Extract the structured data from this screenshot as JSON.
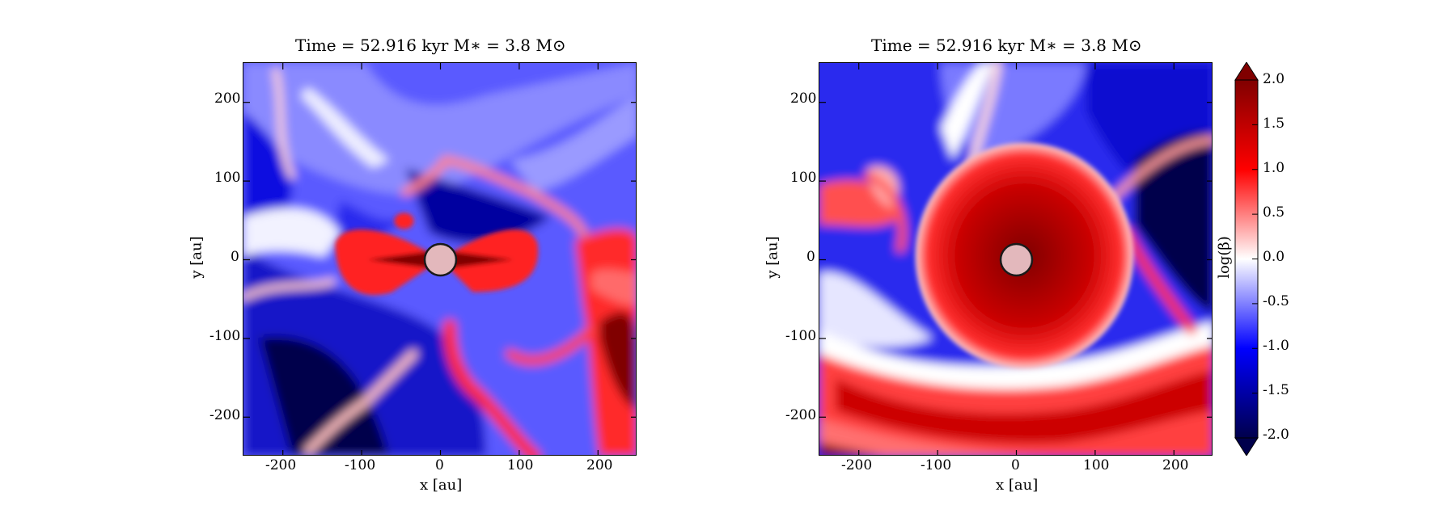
{
  "chart_data": [
    {
      "type": "heatmap",
      "title": "Time = 52.916 kyr    M∗ = 3.8 M⊙",
      "xlabel": "x [au]",
      "ylabel": "y [au]",
      "xlim": [
        -250,
        250
      ],
      "ylim": [
        -250,
        250
      ],
      "x_ticks": [
        -200,
        -100,
        0,
        100,
        200
      ],
      "x_tick_labels": [
        "-200",
        "-100",
        "0",
        "100",
        "200"
      ],
      "y_ticks": [
        200,
        100,
        0,
        -100,
        -200
      ],
      "y_tick_labels": [
        "200",
        "100",
        "0",
        "-100",
        "-200"
      ],
      "colormap": "seismic",
      "sink": {
        "x": 0,
        "y": 0,
        "radius": 20
      },
      "structures": [
        {
          "shape": "bipolar-lobes",
          "description_value": "log(beta) high along equatorial plane"
        },
        {
          "shape": "spiral-arms",
          "description_value": "streamers"
        }
      ]
    },
    {
      "type": "heatmap",
      "title": "Time = 52.916 kyr    M∗ = 3.8 M⊙",
      "xlabel": "x [au]",
      "ylabel": "y [au]",
      "xlim": [
        -250,
        250
      ],
      "ylim": [
        -250,
        250
      ],
      "x_ticks": [
        -200,
        -100,
        0,
        100,
        200
      ],
      "x_tick_labels": [
        "-200",
        "-100",
        "0",
        "100",
        "200"
      ],
      "y_ticks": [
        200,
        100,
        0,
        -100,
        -200
      ],
      "y_tick_labels": [
        "200",
        "100",
        "0",
        "-100",
        "-200"
      ],
      "colormap": "seismic",
      "sink": {
        "x": 0,
        "y": 0,
        "radius": 20
      },
      "structures": [
        {
          "shape": "disk",
          "description_value": "high-beta disk"
        },
        {
          "shape": "arc",
          "description_value": "high-beta arc"
        }
      ]
    }
  ],
  "colorbar": {
    "label": "log(β)",
    "min": -2.0,
    "max": 2.0,
    "extend": "both",
    "ticks": [
      2.0,
      1.5,
      1.0,
      0.5,
      0.0,
      -0.5,
      -1.0,
      -1.5,
      -2.0
    ],
    "tick_labels": [
      "2.0",
      "1.5",
      "1.0",
      "0.5",
      "0.0",
      "-0.5",
      "-1.0",
      "-1.5",
      "-2.0"
    ],
    "colors": [
      "#00004c",
      "#0000ff",
      "#ffffff",
      "#ff0000",
      "#800000"
    ]
  }
}
